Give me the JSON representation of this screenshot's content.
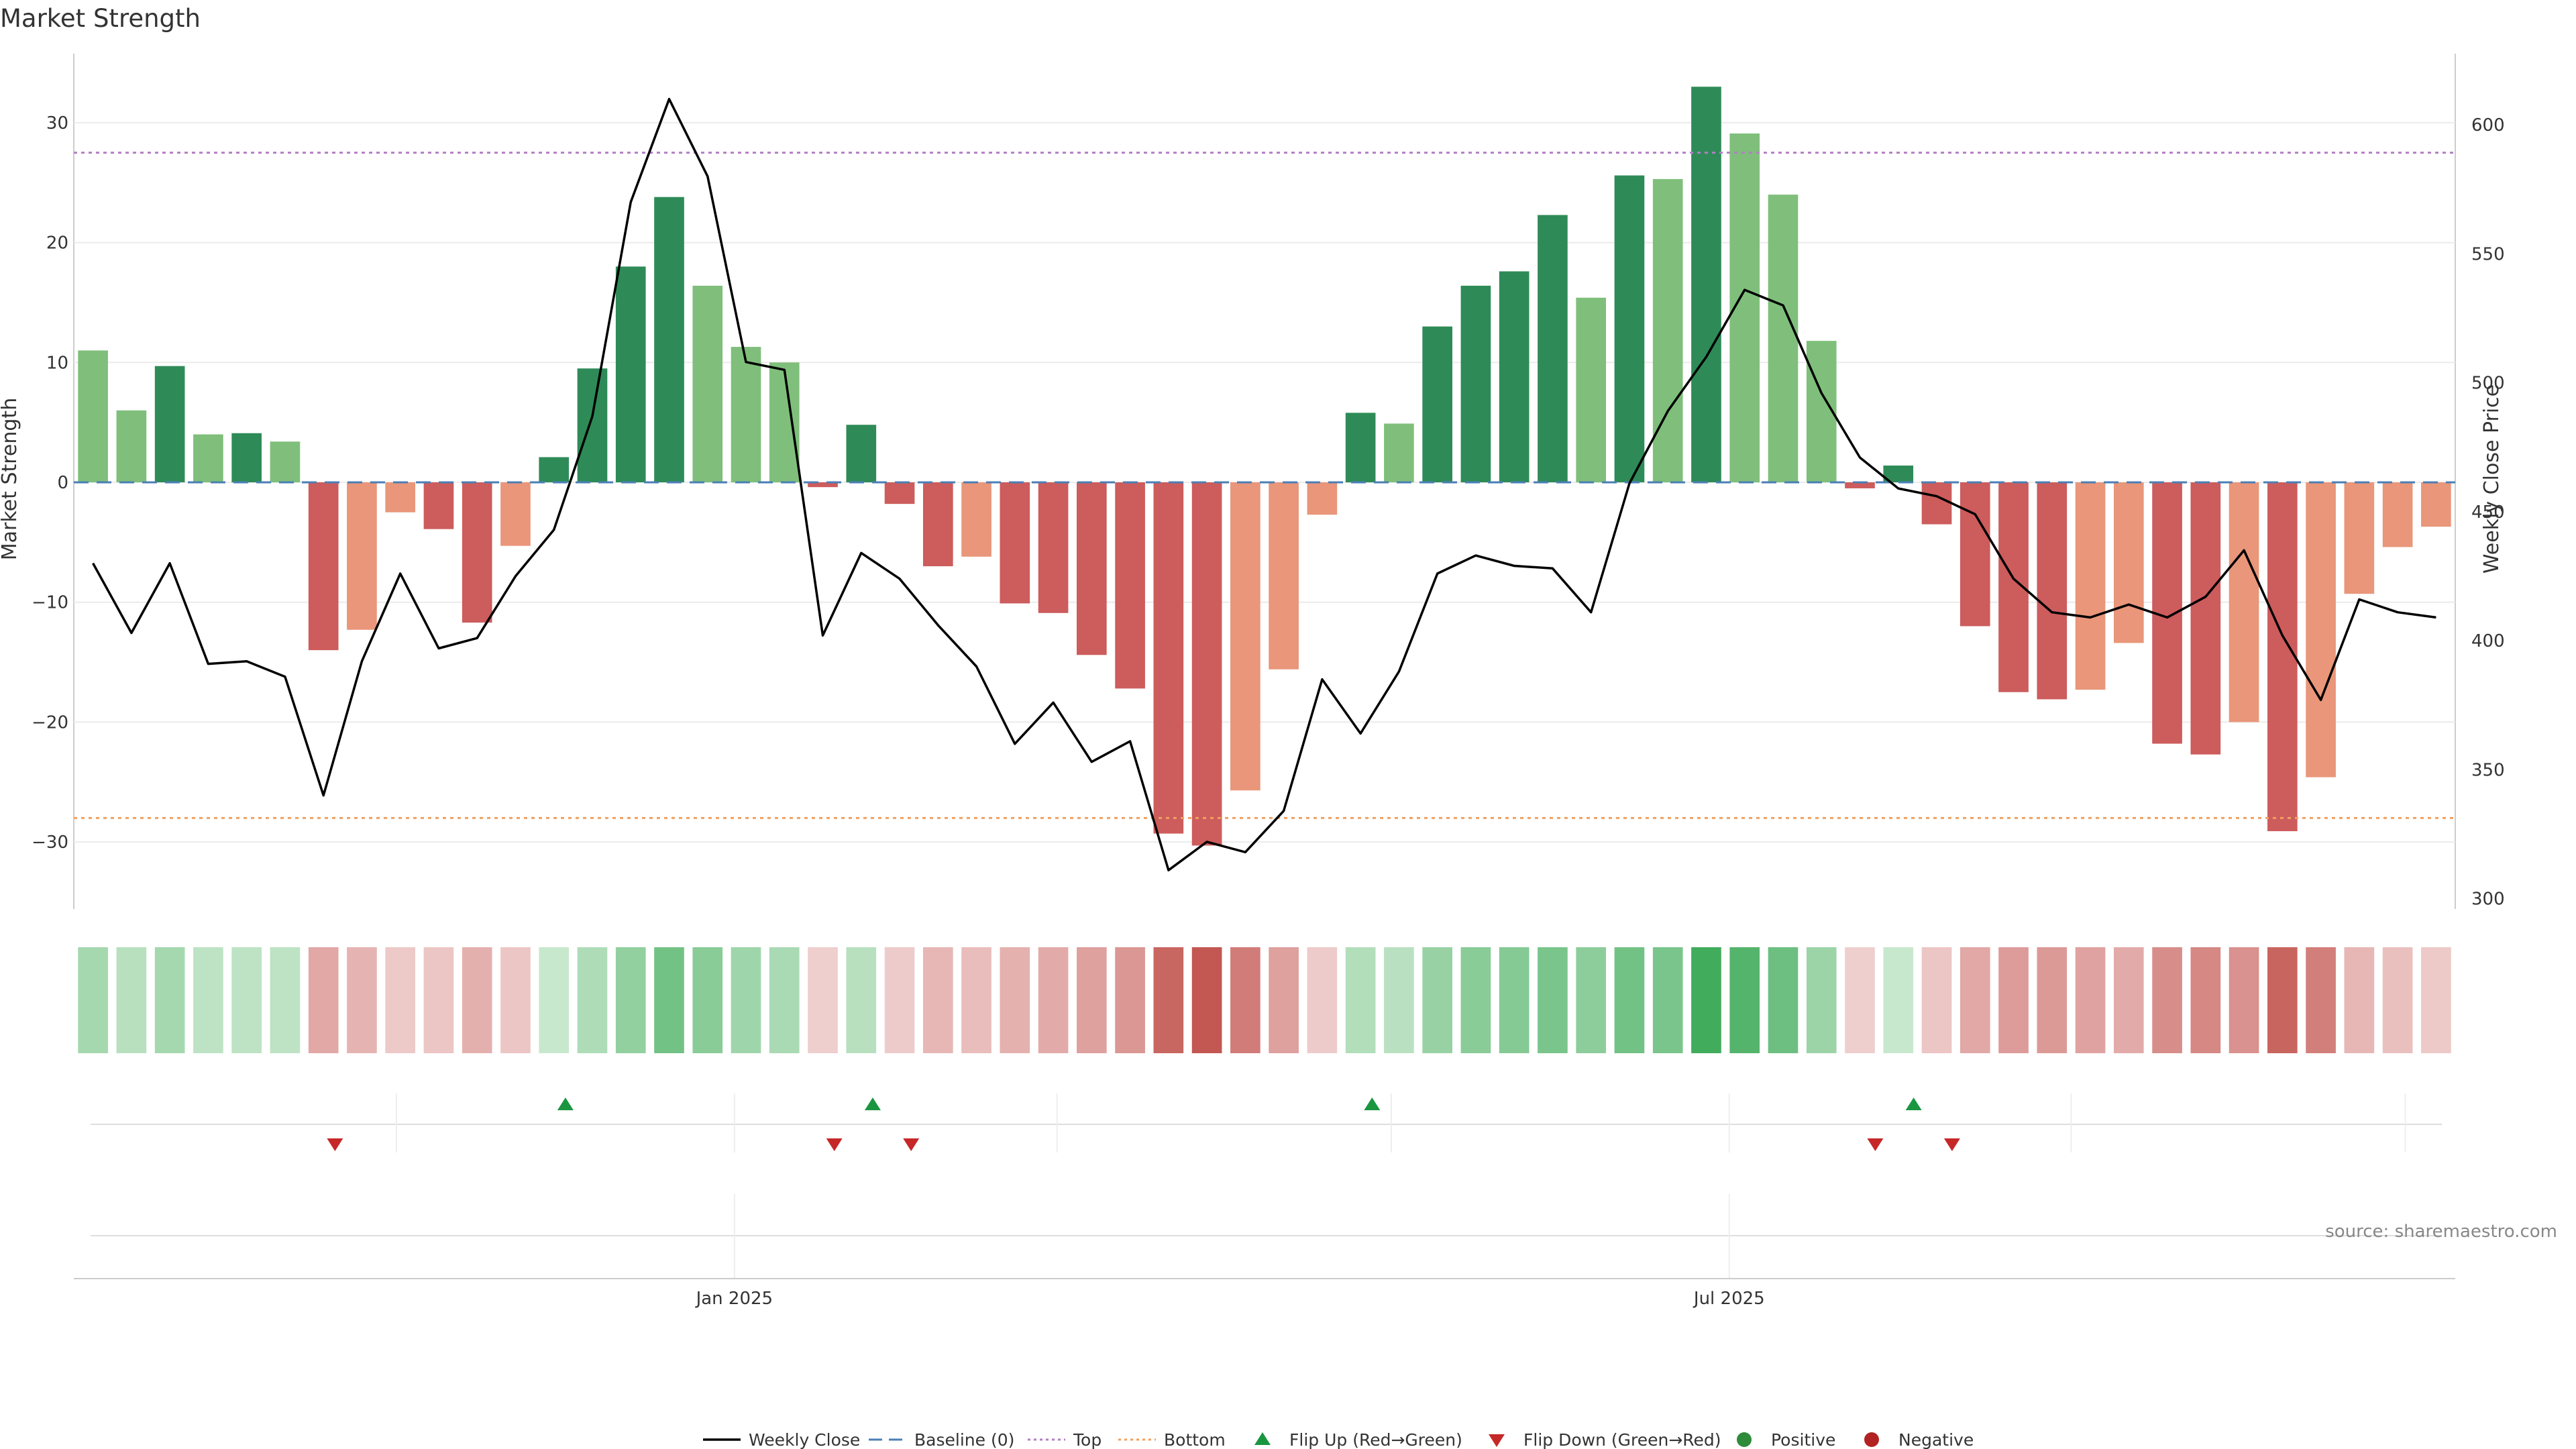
{
  "title": "Market Strength",
  "source": "source: sharemaestro.com",
  "colors": {
    "pos_strong": "#2e8b57",
    "pos_light": "#7fbf7b",
    "neg_strong": "#cd5c5c",
    "neg_light": "#e9967a",
    "line": "#000000",
    "baseline": "#4a7fb5",
    "top": "#b27fc2",
    "bottom": "#f0a060",
    "flip_up": "#1a9641",
    "flip_down": "#c62828",
    "positive": "#2e8b3a",
    "negative": "#b22222"
  },
  "legend": [
    {
      "label": "Weekly Close",
      "symbol": "line"
    },
    {
      "label": "Baseline (0)",
      "symbol": "dash"
    },
    {
      "label": "Top",
      "symbol": "dot-top"
    },
    {
      "label": "Bottom",
      "symbol": "dot-bottom"
    },
    {
      "label": "Flip Up (Red→Green)",
      "symbol": "tri-up"
    },
    {
      "label": "Flip Down (Green→Red)",
      "symbol": "tri-down"
    },
    {
      "label": "Positive",
      "symbol": "circle-pos"
    },
    {
      "label": "Negative",
      "symbol": "circle-neg"
    }
  ],
  "chart_data": {
    "type": "bar",
    "title": "Market Strength",
    "ylabel": "Market Strength",
    "y2label": "Weekly Close Price",
    "ylim": [
      -36,
      36
    ],
    "y2lim": [
      290,
      620
    ],
    "yticks": [
      30,
      20,
      10,
      0,
      -10,
      -20,
      -30
    ],
    "ytick_labels": [
      "30",
      "20",
      "10",
      "0",
      "−10",
      "−20",
      "−30"
    ],
    "y2ticks": [
      600,
      550,
      500,
      450,
      400,
      350,
      300
    ],
    "y2tick_labels": [
      "600",
      "550",
      "500",
      "450",
      "400",
      "350",
      "300"
    ],
    "top_line": 27.5,
    "bottom_line": -28,
    "baseline": 0,
    "n_weeks": 62,
    "xtick_week_index": [
      16.7,
      42.6
    ],
    "xtick_labels": [
      "Jan 2025",
      "Jul 2025"
    ],
    "month_divider_week_index": [
      7.9,
      16.7,
      25.1,
      33.8,
      42.6,
      51.5,
      60.2
    ],
    "series": [
      {
        "name": "Market Strength",
        "values": [
          11,
          6,
          9.7,
          4,
          4.1,
          3.4,
          -14,
          -12.3,
          -2.5,
          -3.9,
          -11.7,
          -5.3,
          2.1,
          9.5,
          18,
          23.8,
          16.4,
          11.3,
          10,
          -0.4,
          4.8,
          -1.8,
          -7,
          -6.2,
          -10.1,
          -10.9,
          -14.4,
          -17.2,
          -29.3,
          -30.3,
          -25.7,
          -15.6,
          -2.7,
          5.8,
          4.9,
          13,
          16.4,
          17.6,
          22.3,
          15.4,
          25.6,
          25.3,
          33,
          29.1,
          24,
          11.8,
          -0.5,
          1.4,
          -3.5,
          -12,
          -17.5,
          -18.1,
          -17.3,
          -13.4,
          -21.8,
          -22.7,
          -20,
          -29.1,
          -24.6,
          -9.3,
          -5.4,
          -3.7
        ],
        "intensity": [
          "light",
          "light",
          "strong",
          "light",
          "strong",
          "light",
          "strong",
          "light",
          "light",
          "strong",
          "strong",
          "light",
          "strong",
          "strong",
          "strong",
          "strong",
          "light",
          "light",
          "light",
          "strong",
          "strong",
          "strong",
          "strong",
          "light",
          "strong",
          "strong",
          "strong",
          "strong",
          "strong",
          "strong",
          "light",
          "light",
          "light",
          "strong",
          "light",
          "strong",
          "strong",
          "strong",
          "strong",
          "light",
          "strong",
          "light",
          "strong",
          "light",
          "light",
          "light",
          "strong",
          "strong",
          "strong",
          "strong",
          "strong",
          "strong",
          "light",
          "light",
          "strong",
          "strong",
          "light",
          "strong",
          "light",
          "light",
          "light",
          "light"
        ]
      },
      {
        "name": "Weekly Close",
        "values": [
          430,
          403,
          430,
          391,
          392,
          386,
          340,
          392,
          426,
          397,
          401,
          425,
          443,
          487,
          570,
          610,
          580,
          508,
          505,
          402,
          434,
          424,
          406,
          390,
          360,
          376,
          353,
          361,
          311,
          322,
          318,
          334,
          385,
          364,
          388,
          426,
          433,
          429,
          428,
          411,
          461,
          489,
          510,
          536,
          530,
          496,
          471,
          459,
          456,
          449,
          424,
          411,
          409,
          414,
          409,
          417,
          435,
          402,
          377,
          416,
          411,
          409
        ]
      }
    ],
    "heat_values": [
      0.35,
      0.25,
      0.35,
      0.22,
      0.22,
      0.22,
      -0.4,
      -0.32,
      -0.18,
      -0.2,
      -0.35,
      -0.2,
      0.16,
      0.3,
      0.45,
      0.62,
      0.5,
      0.38,
      0.33,
      -0.14,
      0.25,
      -0.16,
      -0.3,
      -0.26,
      -0.34,
      -0.38,
      -0.45,
      -0.52,
      -0.85,
      -0.95,
      -0.7,
      -0.45,
      -0.16,
      0.28,
      0.24,
      0.42,
      0.5,
      0.52,
      0.58,
      0.48,
      0.62,
      0.58,
      0.88,
      0.78,
      0.65,
      0.4,
      -0.14,
      0.16,
      -0.2,
      -0.4,
      -0.48,
      -0.5,
      -0.44,
      -0.38,
      -0.58,
      -0.62,
      -0.55,
      -0.86,
      -0.68,
      -0.3,
      -0.24,
      -0.18
    ],
    "flip_up_weeks": [
      12.3,
      20.3,
      33.3,
      47.4
    ],
    "flip_down_weeks": [
      6.3,
      19.3,
      21.3,
      46.4,
      48.4
    ]
  }
}
